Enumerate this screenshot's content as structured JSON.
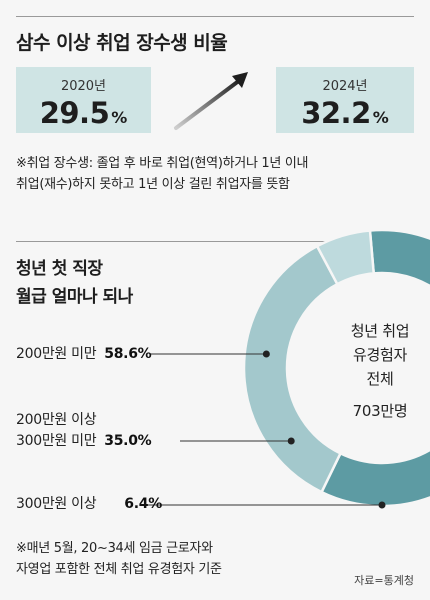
{
  "header": {
    "title": "삼수 이상 취업 장수생 비율"
  },
  "stats": [
    {
      "year": "2020년",
      "value": "29.5",
      "unit": "%"
    },
    {
      "year": "2024년",
      "value": "32.2",
      "unit": "%"
    }
  ],
  "note1": [
    "※취업 장수생: 졸업 후 바로 취업(현역)하거나 1년 이내",
    "취업(재수)하지 못하고 1년 이상 걸린 취업자를 뜻함"
  ],
  "section2": {
    "title_line1": "청년 첫 직장",
    "title_line2": "월급 얼마나 되나"
  },
  "chart_data": {
    "type": "pie",
    "style": "donut",
    "center_label": [
      "청년 취업",
      "유경험자",
      "전체",
      "703만명"
    ],
    "categories": [
      "200만원 미만",
      "200만원 이상 300만원 미만",
      "300만원 이상"
    ],
    "values": [
      58.6,
      35.0,
      6.4
    ],
    "value_labels": [
      "58.6%",
      "35.0%",
      "6.4%"
    ],
    "colors": [
      "#5d9ba3",
      "#a3c8cc",
      "#bedadd"
    ]
  },
  "labels": {
    "cat1": "200만원 미만",
    "cat2_line1": "200만원 이상",
    "cat2_line2": "300만원 미만",
    "cat3": "300만원 이상",
    "val1": "58.6%",
    "val2": "35.0%",
    "val3": "6.4%"
  },
  "center": {
    "l1": "청년 취업",
    "l2": "유경험자",
    "l3": "전체",
    "l4": "703만명"
  },
  "note2": [
    "※매년 5월, 20~34세 임금 근로자와",
    "자영업 포함한 전체 취업 유경험자 기준"
  ],
  "source": "자료=통계청"
}
